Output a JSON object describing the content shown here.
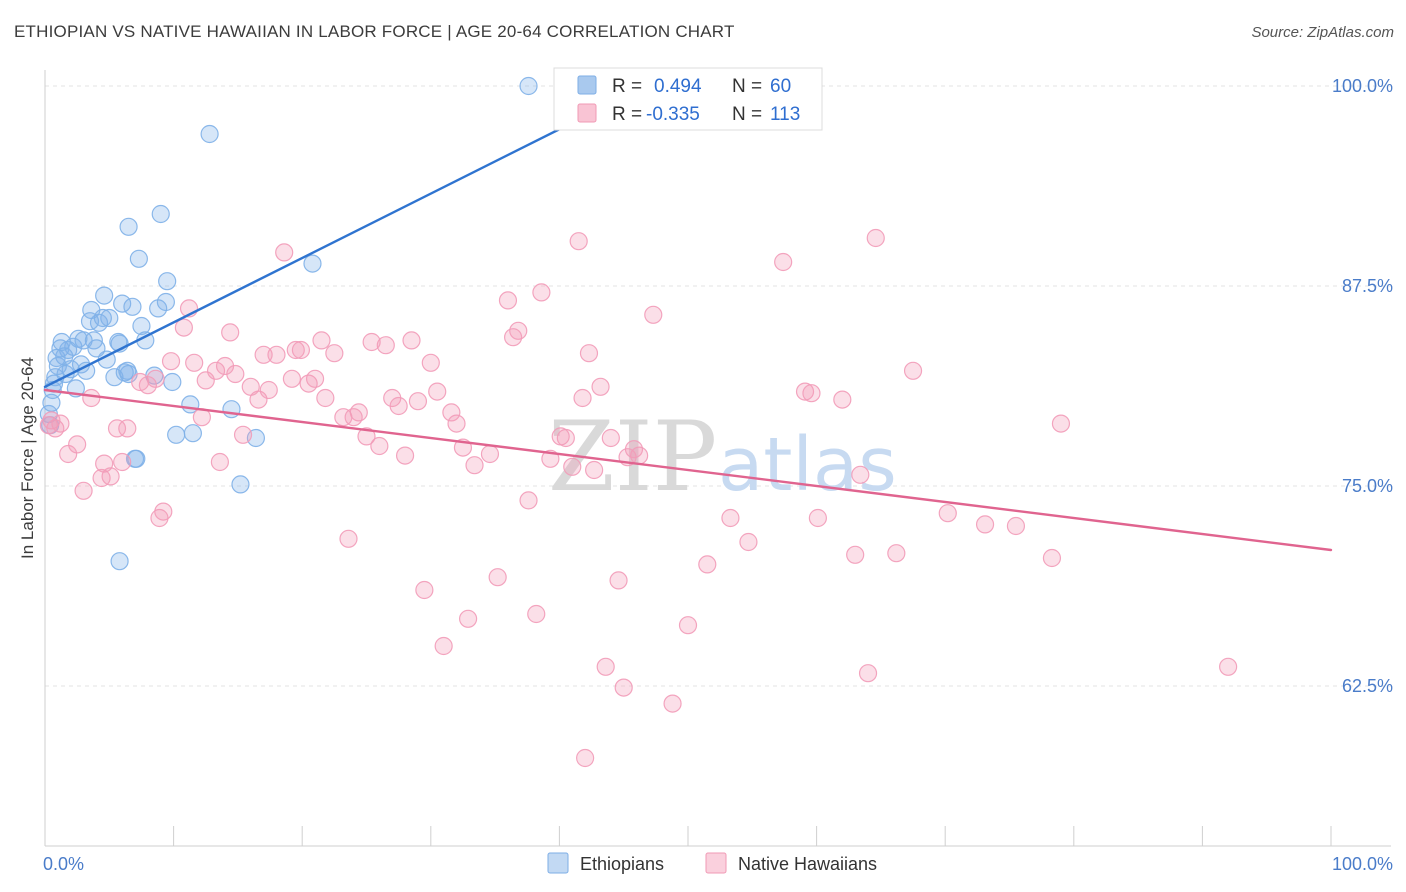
{
  "title": "ETHIOPIAN VS NATIVE HAWAIIAN IN LABOR FORCE | AGE 20-64 CORRELATION CHART",
  "source": "Source: ZipAtlas.com",
  "watermark": {
    "part1": "ZIP",
    "part2": "atlas"
  },
  "legend": {
    "rows": [
      {
        "r_label": "R =",
        "r_value": "0.494",
        "n_label": "N =",
        "n_value": "60",
        "color": "#a9c9ee"
      },
      {
        "r_label": "R =",
        "r_value": "-0.335",
        "n_label": "N =",
        "n_value": "113",
        "color": "#f6b6c9"
      }
    ]
  },
  "bottom_legend": [
    {
      "label": "Ethiopians",
      "color": "#a9c9ee"
    },
    {
      "label": "Native Hawaiians",
      "color": "#f6b6c9"
    }
  ],
  "chart_data": {
    "type": "scatter",
    "title": "ETHIOPIAN VS NATIVE HAWAIIAN IN LABOR FORCE | AGE 20-64 CORRELATION CHART",
    "xlabel": "",
    "ylabel": "In Labor Force | Age 20-64",
    "xlim": [
      0,
      100
    ],
    "ylim": [
      52.5,
      101
    ],
    "x_tick_labels": [
      "0.0%",
      "100.0%"
    ],
    "y_ticks": [
      62.5,
      75.0,
      87.5,
      100.0
    ],
    "y_tick_labels": [
      "62.5%",
      "75.0%",
      "87.5%",
      "100.0%"
    ],
    "grid": true,
    "legend_position": "top-center",
    "series": [
      {
        "name": "Ethiopians",
        "color": "#7eb0e8",
        "line_color": "#2f74d0",
        "trend": {
          "x": [
            0.0,
            40.5
          ],
          "y": [
            81.2,
            97.5
          ]
        },
        "points": [
          [
            0.3,
            79.5
          ],
          [
            0.4,
            78.8
          ],
          [
            0.5,
            80.2
          ],
          [
            0.6,
            81.0
          ],
          [
            0.7,
            81.4
          ],
          [
            0.8,
            81.8
          ],
          [
            0.9,
            83.0
          ],
          [
            1.0,
            82.5
          ],
          [
            1.2,
            83.6
          ],
          [
            1.3,
            84.0
          ],
          [
            1.5,
            83.1
          ],
          [
            1.6,
            82.0
          ],
          [
            1.8,
            83.5
          ],
          [
            2.0,
            82.3
          ],
          [
            2.2,
            83.7
          ],
          [
            2.4,
            81.1
          ],
          [
            2.6,
            84.2
          ],
          [
            2.8,
            82.6
          ],
          [
            3.0,
            84.1
          ],
          [
            3.2,
            82.2
          ],
          [
            3.5,
            85.3
          ],
          [
            3.6,
            86.0
          ],
          [
            3.8,
            84.1
          ],
          [
            4.0,
            83.6
          ],
          [
            4.2,
            85.2
          ],
          [
            4.5,
            85.5
          ],
          [
            4.6,
            86.9
          ],
          [
            4.8,
            82.9
          ],
          [
            5.0,
            85.5
          ],
          [
            5.4,
            81.8
          ],
          [
            5.7,
            84.0
          ],
          [
            5.8,
            83.9
          ],
          [
            6.0,
            86.4
          ],
          [
            6.2,
            82.1
          ],
          [
            6.4,
            82.2
          ],
          [
            6.5,
            91.2
          ],
          [
            6.8,
            86.2
          ],
          [
            7.0,
            76.7
          ],
          [
            7.1,
            76.7
          ],
          [
            7.3,
            89.2
          ],
          [
            7.5,
            85.0
          ],
          [
            7.8,
            84.1
          ],
          [
            8.5,
            81.9
          ],
          [
            8.8,
            86.1
          ],
          [
            9.0,
            92.0
          ],
          [
            9.4,
            86.5
          ],
          [
            9.5,
            87.8
          ],
          [
            9.9,
            81.5
          ],
          [
            10.2,
            78.2
          ],
          [
            11.3,
            80.1
          ],
          [
            11.5,
            78.3
          ],
          [
            12.8,
            97.0
          ],
          [
            14.5,
            79.8
          ],
          [
            15.2,
            75.1
          ],
          [
            16.4,
            78.0
          ],
          [
            20.8,
            88.9
          ],
          [
            5.8,
            70.3
          ],
          [
            6.5,
            82.0
          ],
          [
            37.6,
            100.0
          ],
          [
            41.0,
            100.0
          ]
        ]
      },
      {
        "name": "Native Hawaiians",
        "color": "#f29bb8",
        "line_color": "#e0648f",
        "trend": {
          "x": [
            0.0,
            100.0
          ],
          "y": [
            81.0,
            71.0
          ]
        },
        "points": [
          [
            0.3,
            78.8
          ],
          [
            0.5,
            79.1
          ],
          [
            0.8,
            78.6
          ],
          [
            1.2,
            78.9
          ],
          [
            1.8,
            77.0
          ],
          [
            2.5,
            77.6
          ],
          [
            3.0,
            74.7
          ],
          [
            3.6,
            80.5
          ],
          [
            4.4,
            75.5
          ],
          [
            4.6,
            76.4
          ],
          [
            5.1,
            75.6
          ],
          [
            5.6,
            78.6
          ],
          [
            6.0,
            76.5
          ],
          [
            6.4,
            78.6
          ],
          [
            7.4,
            81.5
          ],
          [
            8.0,
            81.3
          ],
          [
            8.6,
            81.7
          ],
          [
            8.9,
            73.0
          ],
          [
            9.2,
            73.4
          ],
          [
            9.8,
            82.8
          ],
          [
            10.8,
            84.9
          ],
          [
            11.2,
            86.1
          ],
          [
            11.6,
            82.7
          ],
          [
            12.2,
            79.3
          ],
          [
            12.5,
            81.6
          ],
          [
            13.3,
            82.2
          ],
          [
            13.6,
            76.5
          ],
          [
            14.0,
            82.5
          ],
          [
            14.4,
            84.6
          ],
          [
            14.8,
            82.0
          ],
          [
            15.4,
            78.2
          ],
          [
            16.0,
            81.2
          ],
          [
            16.6,
            80.4
          ],
          [
            17.0,
            83.2
          ],
          [
            17.4,
            81.0
          ],
          [
            18.0,
            83.2
          ],
          [
            18.6,
            89.6
          ],
          [
            19.2,
            81.7
          ],
          [
            19.5,
            83.5
          ],
          [
            19.9,
            83.5
          ],
          [
            20.5,
            81.4
          ],
          [
            21.0,
            81.7
          ],
          [
            21.5,
            84.1
          ],
          [
            21.8,
            80.5
          ],
          [
            22.5,
            83.3
          ],
          [
            23.2,
            79.3
          ],
          [
            23.6,
            71.7
          ],
          [
            24.0,
            79.3
          ],
          [
            24.4,
            79.6
          ],
          [
            25.0,
            78.1
          ],
          [
            25.4,
            84.0
          ],
          [
            26.0,
            77.5
          ],
          [
            26.5,
            83.8
          ],
          [
            27.0,
            80.5
          ],
          [
            27.5,
            80.0
          ],
          [
            28.0,
            76.9
          ],
          [
            28.5,
            84.1
          ],
          [
            29.0,
            80.3
          ],
          [
            29.5,
            68.5
          ],
          [
            30.0,
            82.7
          ],
          [
            30.5,
            80.9
          ],
          [
            31.0,
            65.0
          ],
          [
            31.6,
            79.6
          ],
          [
            32.0,
            78.9
          ],
          [
            32.5,
            77.4
          ],
          [
            32.9,
            66.7
          ],
          [
            33.4,
            76.3
          ],
          [
            34.6,
            77.0
          ],
          [
            35.2,
            69.3
          ],
          [
            36.0,
            86.6
          ],
          [
            36.4,
            84.3
          ],
          [
            36.8,
            84.7
          ],
          [
            37.6,
            74.1
          ],
          [
            38.2,
            67.0
          ],
          [
            38.6,
            87.1
          ],
          [
            39.3,
            76.7
          ],
          [
            40.1,
            78.1
          ],
          [
            40.5,
            78.0
          ],
          [
            41.0,
            76.2
          ],
          [
            41.5,
            90.3
          ],
          [
            42.0,
            58.0
          ],
          [
            42.3,
            83.3
          ],
          [
            42.7,
            76.0
          ],
          [
            43.2,
            81.2
          ],
          [
            43.6,
            63.7
          ],
          [
            44.0,
            78.0
          ],
          [
            44.6,
            69.1
          ],
          [
            45.0,
            62.4
          ],
          [
            45.3,
            76.8
          ],
          [
            45.8,
            77.3
          ],
          [
            46.2,
            76.9
          ],
          [
            47.3,
            85.7
          ],
          [
            48.8,
            61.4
          ],
          [
            50.0,
            66.3
          ],
          [
            51.5,
            70.1
          ],
          [
            53.3,
            73.0
          ],
          [
            54.7,
            71.5
          ],
          [
            57.4,
            89.0
          ],
          [
            59.1,
            80.9
          ],
          [
            59.6,
            80.8
          ],
          [
            60.1,
            73.0
          ],
          [
            62.0,
            80.4
          ],
          [
            63.0,
            70.7
          ],
          [
            63.4,
            75.7
          ],
          [
            64.0,
            63.3
          ],
          [
            64.6,
            90.5
          ],
          [
            66.2,
            70.8
          ],
          [
            67.5,
            82.2
          ],
          [
            70.2,
            73.3
          ],
          [
            73.1,
            72.6
          ],
          [
            75.5,
            72.5
          ],
          [
            78.3,
            70.5
          ],
          [
            79.0,
            78.9
          ],
          [
            92.0,
            63.7
          ],
          [
            41.8,
            80.5
          ]
        ]
      }
    ]
  }
}
